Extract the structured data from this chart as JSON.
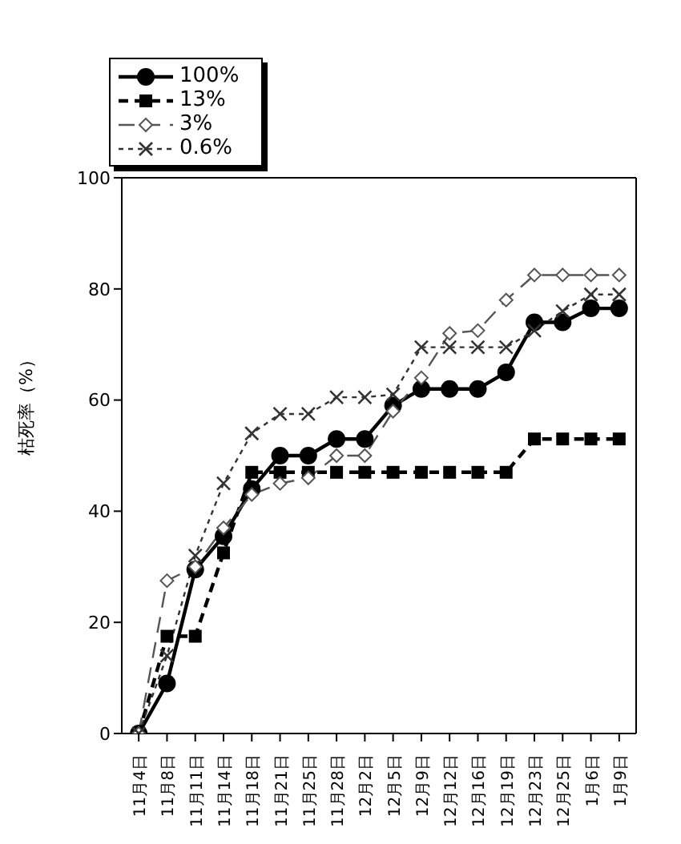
{
  "chart_data": {
    "type": "line",
    "ylabel": "枯死率（%）",
    "categories": [
      "11月4日",
      "11月8日",
      "11月11日",
      "11月14日",
      "11月18日",
      "11月21日",
      "11月25日",
      "11月28日",
      "12月2日",
      "12月5日",
      "12月9日",
      "12月12日",
      "12月16日",
      "12月19日",
      "12月23日",
      "12月25日",
      "1月6日",
      "1月9日"
    ],
    "series": [
      {
        "name": "100%",
        "color": "#000000",
        "marker": "circle",
        "line_style": "solid",
        "values": [
          0,
          9,
          29.5,
          35.5,
          44,
          50,
          50,
          53,
          53,
          59,
          62,
          62,
          62,
          65,
          74,
          74,
          76.5,
          76.5
        ]
      },
      {
        "name": "13%",
        "color": "#000000",
        "marker": "square",
        "line_style": "dashed",
        "values": [
          0,
          17.5,
          17.5,
          32.5,
          47,
          47,
          47,
          47,
          47,
          47,
          47,
          47,
          47,
          47,
          53,
          53,
          53,
          53
        ]
      },
      {
        "name": "3%",
        "color": "#555555",
        "marker": "diamond",
        "line_style": "dashed",
        "values": [
          0,
          27.5,
          30,
          37,
          43,
          45,
          46,
          50,
          50,
          58,
          64,
          72,
          72.5,
          78,
          82.5,
          82.5,
          82.5,
          82.5
        ]
      },
      {
        "name": "0.6%",
        "color": "#333333",
        "marker": "cross",
        "line_style": "dotted",
        "values": [
          0,
          14,
          32,
          45,
          54,
          57.5,
          57.5,
          60.5,
          60.5,
          61,
          69.5,
          69.5,
          69.5,
          69.5,
          72.5,
          76,
          79,
          79
        ]
      }
    ],
    "ylim": [
      0,
      100
    ],
    "yticks": [
      0,
      20,
      40,
      60,
      80,
      100
    ],
    "grid": false,
    "legend": "top left"
  }
}
